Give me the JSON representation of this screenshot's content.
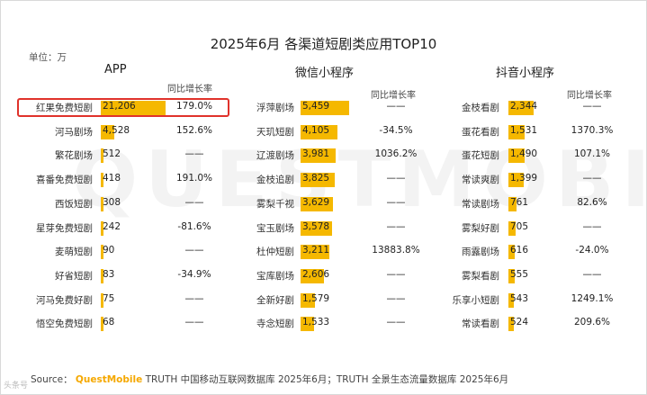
{
  "title": "2025年6月 各渠道短剧类应用TOP10",
  "unit_label": "单位：万",
  "watermark": "QUESTMOBILE",
  "growth_header": "同比增长率",
  "no_value_symbol": "——",
  "colors": {
    "bar": "#f5b800",
    "highlight": "#e0322b"
  },
  "source": {
    "prefix": "Source：",
    "logo": "QuestMobile",
    "text": "TRUTH 中国移动互联网数据库 2025年6月；TRUTH 全景生态流量数据库 2025年6月"
  },
  "corner_mark": "头条号",
  "chart_data": [
    {
      "type": "bar",
      "title": "APP",
      "highlighted_index": 0,
      "categories": [
        "红果免费短剧",
        "河马剧场",
        "繁花剧场",
        "喜番免费短剧",
        "西饭短剧",
        "星芽免费短剧",
        "麦萌短剧",
        "好省短剧",
        "河马免费好剧",
        "悟空免费短剧"
      ],
      "values": [
        21206,
        4528,
        512,
        418,
        308,
        242,
        90,
        83,
        75,
        68
      ],
      "value_labels": [
        "21,206",
        "4,528",
        "512",
        "418",
        "308",
        "242",
        "90",
        "83",
        "75",
        "68"
      ],
      "growth": [
        "179.0%",
        "152.6%",
        "——",
        "191.0%",
        "——",
        "-81.6%",
        "——",
        "-34.9%",
        "——",
        "——"
      ]
    },
    {
      "type": "bar",
      "title": "微信小程序",
      "categories": [
        "浮萍剧场",
        "天玑短剧",
        "辽渡剧场",
        "金枝追剧",
        "雾梨千视",
        "宝玉剧场",
        "杜仲短剧",
        "宝库剧场",
        "全新好剧",
        "寺念短剧"
      ],
      "values": [
        5459,
        4105,
        3981,
        3825,
        3629,
        3578,
        3211,
        2606,
        1579,
        1533
      ],
      "value_labels": [
        "5,459",
        "4,105",
        "3,981",
        "3,825",
        "3,629",
        "3,578",
        "3,211",
        "2,606",
        "1,579",
        "1,533"
      ],
      "growth": [
        "——",
        "-34.5%",
        "1036.2%",
        "——",
        "——",
        "——",
        "13883.8%",
        "——",
        "——",
        "——"
      ]
    },
    {
      "type": "bar",
      "title": "抖音小程序",
      "categories": [
        "金枝看剧",
        "蛋花看剧",
        "蛋花短剧",
        "常读爽剧",
        "常读剧场",
        "雾梨好剧",
        "雨露剧场",
        "雾梨看剧",
        "乐享小短剧",
        "常读看剧"
      ],
      "values": [
        2344,
        1531,
        1490,
        1399,
        761,
        705,
        616,
        555,
        543,
        524
      ],
      "value_labels": [
        "2,344",
        "1,531",
        "1,490",
        "1,399",
        "761",
        "705",
        "616",
        "555",
        "543",
        "524"
      ],
      "growth": [
        "——",
        "1370.3%",
        "107.1%",
        "——",
        "82.6%",
        "——",
        "-24.0%",
        "——",
        "1249.1%",
        "209.6%"
      ]
    }
  ]
}
